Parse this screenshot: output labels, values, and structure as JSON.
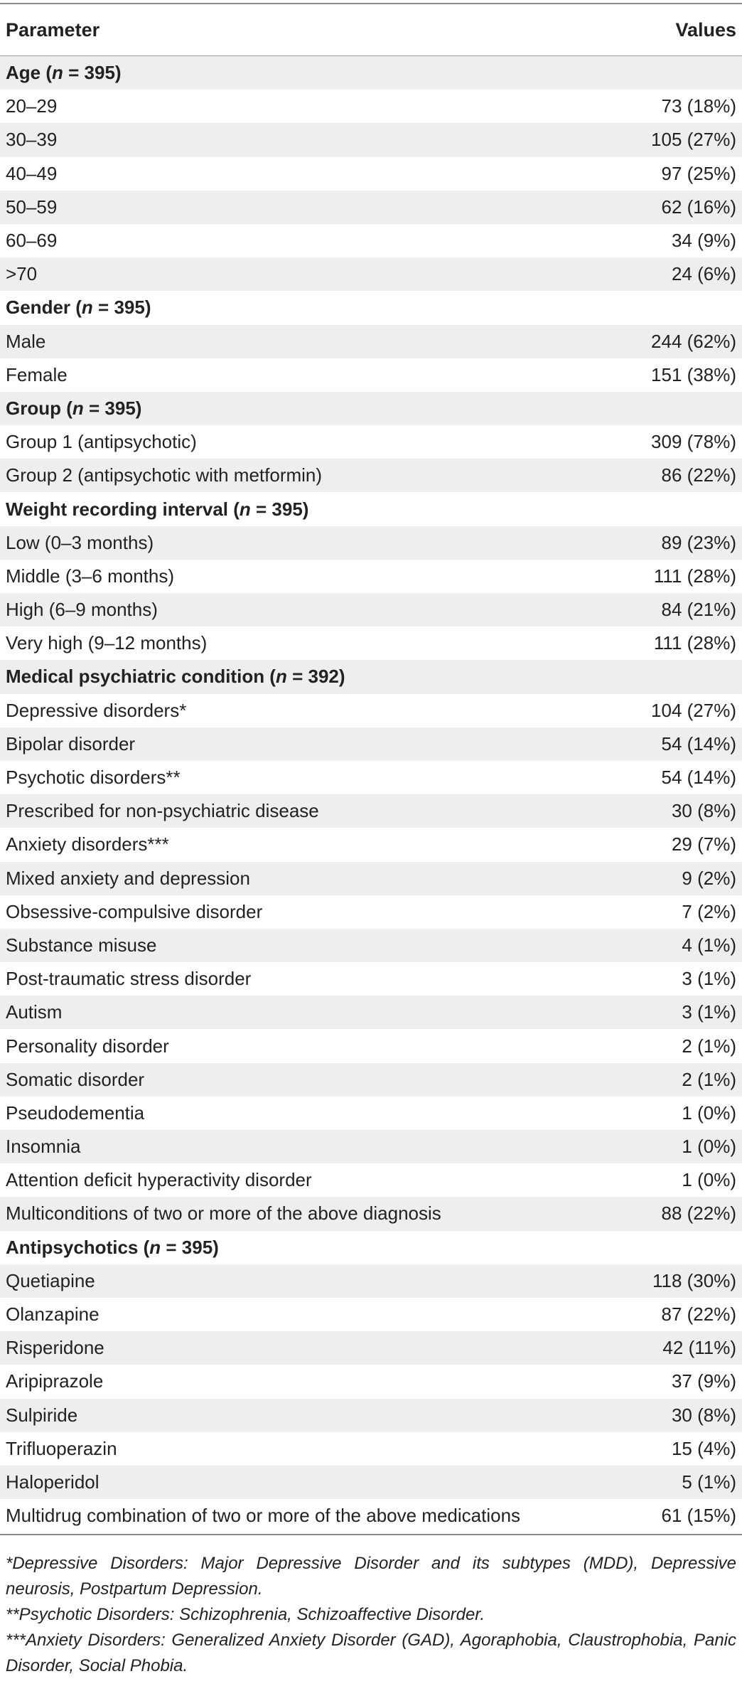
{
  "table": {
    "header": {
      "parameter": "Parameter",
      "values": "Values"
    },
    "rows": [
      {
        "type": "section",
        "label": "Age (",
        "n_var": "n",
        "n_rest": " = 395)",
        "value": ""
      },
      {
        "type": "item",
        "label": "20–29",
        "value": "73 (18%)"
      },
      {
        "type": "item",
        "label": "30–39",
        "value": "105 (27%)"
      },
      {
        "type": "item",
        "label": "40–49",
        "value": "97 (25%)"
      },
      {
        "type": "item",
        "label": "50–59",
        "value": "62 (16%)"
      },
      {
        "type": "item",
        "label": "60–69",
        "value": "34 (9%)"
      },
      {
        "type": "item",
        "label": ">70",
        "value": "24 (6%)"
      },
      {
        "type": "section",
        "label": "Gender (",
        "n_var": "n",
        "n_rest": " = 395)",
        "value": ""
      },
      {
        "type": "item",
        "label": "Male",
        "value": "244 (62%)"
      },
      {
        "type": "item",
        "label": "Female",
        "value": "151 (38%)"
      },
      {
        "type": "section",
        "label": "Group (",
        "n_var": "n",
        "n_rest": " = 395)",
        "value": ""
      },
      {
        "type": "item",
        "label": "Group 1 (antipsychotic)",
        "value": "309 (78%)"
      },
      {
        "type": "item",
        "label": "Group 2 (antipsychotic with metformin)",
        "value": "86 (22%)"
      },
      {
        "type": "section",
        "label": "Weight recording interval (",
        "n_var": "n",
        "n_rest": " = 395)",
        "value": ""
      },
      {
        "type": "item",
        "label": "Low (0–3 months)",
        "value": "89 (23%)"
      },
      {
        "type": "item",
        "label": "Middle (3–6 months)",
        "value": "111 (28%)"
      },
      {
        "type": "item",
        "label": "High (6–9 months)",
        "value": "84 (21%)"
      },
      {
        "type": "item",
        "label": "Very high (9–12 months)",
        "value": "111 (28%)"
      },
      {
        "type": "section",
        "label": "Medical psychiatric condition (",
        "n_var": "n",
        "n_rest": " = 392)",
        "value": ""
      },
      {
        "type": "item",
        "label": "Depressive disorders*",
        "value": "104 (27%)"
      },
      {
        "type": "item",
        "label": "Bipolar disorder",
        "value": "54 (14%)"
      },
      {
        "type": "item",
        "label": "Psychotic disorders**",
        "value": "54 (14%)"
      },
      {
        "type": "item",
        "label": "Prescribed for non-psychiatric disease",
        "value": "30 (8%)"
      },
      {
        "type": "item",
        "label": "Anxiety disorders***",
        "value": "29 (7%)"
      },
      {
        "type": "item",
        "label": "Mixed anxiety and depression",
        "value": "9 (2%)"
      },
      {
        "type": "item",
        "label": "Obsessive-compulsive disorder",
        "value": "7 (2%)"
      },
      {
        "type": "item",
        "label": "Substance misuse",
        "value": "4 (1%)"
      },
      {
        "type": "item",
        "label": "Post-traumatic stress disorder",
        "value": "3 (1%)"
      },
      {
        "type": "item",
        "label": "Autism",
        "value": "3 (1%)"
      },
      {
        "type": "item",
        "label": "Personality disorder",
        "value": "2 (1%)"
      },
      {
        "type": "item",
        "label": "Somatic disorder",
        "value": "2 (1%)"
      },
      {
        "type": "item",
        "label": "Pseudodementia",
        "value": "1 (0%)"
      },
      {
        "type": "item",
        "label": "Insomnia",
        "value": "1 (0%)"
      },
      {
        "type": "item",
        "label": "Attention deficit hyperactivity disorder",
        "value": "1 (0%)"
      },
      {
        "type": "item",
        "label": "Multiconditions of two or more of the above diagnosis",
        "value": "88 (22%)"
      },
      {
        "type": "section",
        "label": "Antipsychotics (",
        "n_var": "n",
        "n_rest": " = 395)",
        "value": ""
      },
      {
        "type": "item",
        "label": "Quetiapine",
        "value": "118 (30%)"
      },
      {
        "type": "item",
        "label": "Olanzapine",
        "value": "87 (22%)"
      },
      {
        "type": "item",
        "label": "Risperidone",
        "value": "42 (11%)"
      },
      {
        "type": "item",
        "label": "Aripiprazole",
        "value": "37 (9%)"
      },
      {
        "type": "item",
        "label": "Sulpiride",
        "value": "30 (8%)"
      },
      {
        "type": "item",
        "label": "Trifluoperazin",
        "value": "15 (4%)"
      },
      {
        "type": "item",
        "label": "Haloperidol",
        "value": "5 (1%)"
      },
      {
        "type": "item",
        "label": "Multidrug combination of two or more of the above medications",
        "value": "61 (15%)"
      }
    ]
  },
  "footnotes": [
    "*Depressive Disorders: Major Depressive Disorder and its subtypes (MDD), Depressive neurosis, Postpartum Depression.",
    "**Psychotic Disorders: Schizophrenia, Schizoaffective Disorder.",
    "***Anxiety Disorders: Generalized Anxiety Disorder (GAD), Agoraphobia, Claustrophobia, Panic Disorder, Social Phobia."
  ],
  "colors": {
    "row_stripe": "#eeeeee",
    "rule": "#8a8a8a",
    "text": "#222222"
  }
}
